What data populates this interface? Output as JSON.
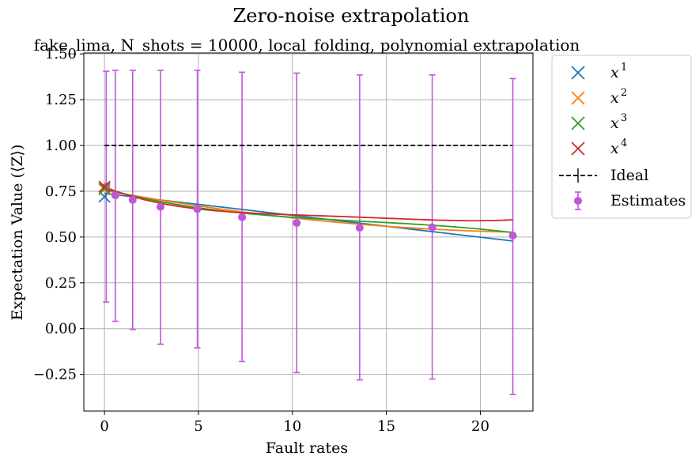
{
  "chart_data": {
    "type": "line",
    "title": "Zero-noise extrapolation",
    "subtitle": "fake_lima, N_shots = 10000, local_folding, polynomial extrapolation",
    "xlabel": "Fault rates",
    "ylabel": "Expectation Value (⟨Z⟩)",
    "xlim": [
      -1.1,
      22.8
    ],
    "ylim": [
      -0.45,
      1.505
    ],
    "grid": true,
    "legend_position": "outside-top-right",
    "x_ticks": [
      0,
      5,
      10,
      15,
      20
    ],
    "y_ticks": [
      -0.25,
      0.0,
      0.25,
      0.5,
      0.75,
      1.0,
      1.25,
      1.5
    ],
    "x_tick_labels": [
      "0",
      "5",
      "10",
      "15",
      "20"
    ],
    "y_tick_labels": [
      "−0.25",
      "0.00",
      "0.25",
      "0.50",
      "0.75",
      "1.00",
      "1.25",
      "1.50"
    ],
    "ideal": {
      "name": "Ideal",
      "value": 1.0,
      "x_range": [
        0,
        21.7
      ],
      "color": "#000000"
    },
    "estimates": {
      "name": "Estimates",
      "color": "#c056d9",
      "x": [
        0.09,
        0.58,
        1.5,
        2.98,
        4.94,
        7.32,
        10.23,
        13.58,
        17.44,
        21.73
      ],
      "y": [
        0.775,
        0.728,
        0.703,
        0.665,
        0.653,
        0.608,
        0.577,
        0.551,
        0.553,
        0.508
      ],
      "err_low": [
        0.145,
        0.04,
        -0.005,
        -0.085,
        -0.105,
        -0.18,
        -0.24,
        -0.28,
        -0.275,
        -0.36
      ],
      "err_high": [
        1.405,
        1.41,
        1.41,
        1.41,
        1.41,
        1.4,
        1.395,
        1.385,
        1.385,
        1.365
      ]
    },
    "fits": [
      {
        "name": "x^1",
        "base": "x",
        "exp": "1",
        "color": "#1f77b4",
        "zero_value": 0.72,
        "coeffs": [
          0.7381,
          -0.01195
        ]
      },
      {
        "name": "x^2",
        "base": "x",
        "exp": "2",
        "color": "#ff7f0e",
        "zero_value": 0.76,
        "coeffs": [
          0.7546,
          -0.0188,
          0.000383
        ]
      },
      {
        "name": "x^3",
        "base": "x",
        "exp": "3",
        "color": "#2ca02c",
        "zero_value": 0.765,
        "coeffs": [
          0.7633,
          -0.0279,
          0.001629,
          -3.92e-05
        ]
      },
      {
        "name": "x^4",
        "base": "x",
        "exp": "4",
        "color": "#d62728",
        "zero_value": 0.775,
        "coeffs": [
          0.7741,
          -0.04155,
          0.004543,
          -0.0002368,
          4.52e-06
        ]
      }
    ]
  }
}
